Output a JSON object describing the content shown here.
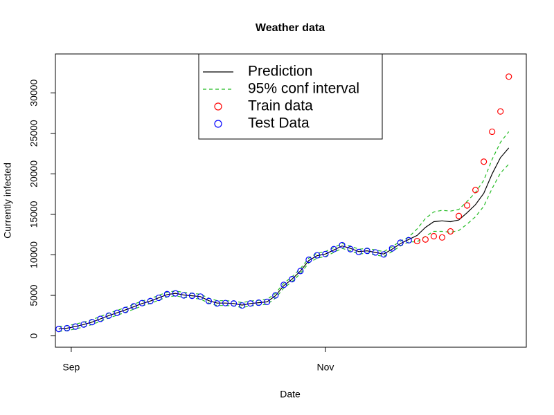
{
  "chart_data": {
    "type": "line",
    "title": "Weather data",
    "x_label": "Date",
    "y_label": "Currently infected",
    "xlim": [
      -3.8,
      109.2
    ],
    "xticks": [
      {
        "value": 0,
        "label": "Sep"
      },
      {
        "value": 61,
        "label": "Nov"
      }
    ],
    "ylim": [
      -1400,
      34800
    ],
    "yticks": [
      0,
      5000,
      10000,
      15000,
      20000,
      25000,
      30000
    ],
    "legend": "top-center",
    "x": [
      -3,
      -1,
      1,
      3,
      5,
      7,
      9,
      11,
      13,
      15,
      17,
      19,
      21,
      23,
      25,
      27,
      29,
      31,
      33,
      35,
      37,
      39,
      41,
      43,
      45,
      47,
      49,
      51,
      53,
      55,
      57,
      59,
      61,
      63,
      65,
      67,
      69,
      71,
      73,
      75,
      77,
      79,
      81,
      83,
      85,
      87,
      89,
      91,
      93,
      95,
      97,
      99,
      101,
      103,
      105
    ],
    "series": [
      {
        "name": "Prediction",
        "color": "#000000",
        "kind": "line",
        "values": [
          850,
          950,
          1150,
          1400,
          1700,
          2100,
          2500,
          2850,
          3200,
          3600,
          4000,
          4300,
          4700,
          5100,
          5250,
          5050,
          4950,
          4850,
          4350,
          4050,
          4050,
          4000,
          3800,
          4000,
          4100,
          4200,
          4950,
          6200,
          7000,
          8000,
          9300,
          9900,
          10100,
          10600,
          11100,
          10800,
          10400,
          10500,
          10300,
          10100,
          10700,
          11400,
          11900,
          12400,
          13400,
          14100,
          14200,
          14100,
          14300,
          15200,
          16200,
          17600,
          20000,
          22000,
          23200
        ]
      },
      {
        "name": "95% conf interval",
        "color": "#22bb22",
        "kind": "band",
        "upper": [
          1150,
          1250,
          1450,
          1700,
          2000,
          2400,
          2800,
          3150,
          3500,
          3900,
          4300,
          4600,
          5000,
          5400,
          5550,
          5350,
          5250,
          5150,
          4650,
          4350,
          4350,
          4300,
          4100,
          4300,
          4400,
          4500,
          5250,
          6500,
          7300,
          8300,
          9600,
          10200,
          10400,
          10900,
          11400,
          11100,
          10700,
          10800,
          10600,
          10400,
          11000,
          11700,
          12200,
          13200,
          14500,
          15300,
          15500,
          15400,
          15600,
          16600,
          17700,
          19200,
          21800,
          23900,
          25200
        ],
        "lower": [
          550,
          650,
          850,
          1100,
          1400,
          1800,
          2200,
          2550,
          2900,
          3300,
          3700,
          4000,
          4400,
          4800,
          4950,
          4750,
          4650,
          4550,
          4050,
          3750,
          3750,
          3700,
          3500,
          3700,
          3800,
          3900,
          4650,
          5900,
          6700,
          7700,
          9000,
          9600,
          9800,
          10300,
          10800,
          10500,
          10100,
          10200,
          10000,
          9800,
          10400,
          11100,
          11600,
          11600,
          12300,
          12900,
          12900,
          12800,
          13000,
          13800,
          14700,
          16000,
          18200,
          20100,
          21200
        ]
      },
      {
        "name": "Train data",
        "color": "#ff0000",
        "kind": "points",
        "values": [
          null,
          null,
          null,
          null,
          null,
          null,
          null,
          null,
          null,
          null,
          null,
          null,
          null,
          null,
          null,
          null,
          null,
          null,
          null,
          null,
          null,
          null,
          null,
          null,
          null,
          null,
          null,
          null,
          null,
          null,
          null,
          null,
          null,
          null,
          null,
          null,
          null,
          null,
          null,
          null,
          null,
          null,
          null,
          11700,
          11900,
          12300,
          12150,
          12900,
          14800,
          16100,
          18000,
          21500,
          25200,
          27700,
          32000
        ]
      },
      {
        "name": "Test Data",
        "color": "#0000ff",
        "kind": "points",
        "values": [
          850,
          950,
          1150,
          1400,
          1700,
          2100,
          2500,
          2850,
          3200,
          3650,
          4050,
          4300,
          4700,
          5150,
          5250,
          5000,
          4950,
          4850,
          4300,
          4000,
          4050,
          4000,
          3750,
          4000,
          4100,
          4200,
          5000,
          6300,
          7000,
          8000,
          9400,
          9950,
          10100,
          10700,
          11200,
          10700,
          10350,
          10500,
          10300,
          10050,
          10800,
          11500,
          11800,
          null,
          null,
          null,
          null,
          null,
          null,
          null,
          null,
          null,
          null,
          null,
          null
        ]
      }
    ]
  }
}
